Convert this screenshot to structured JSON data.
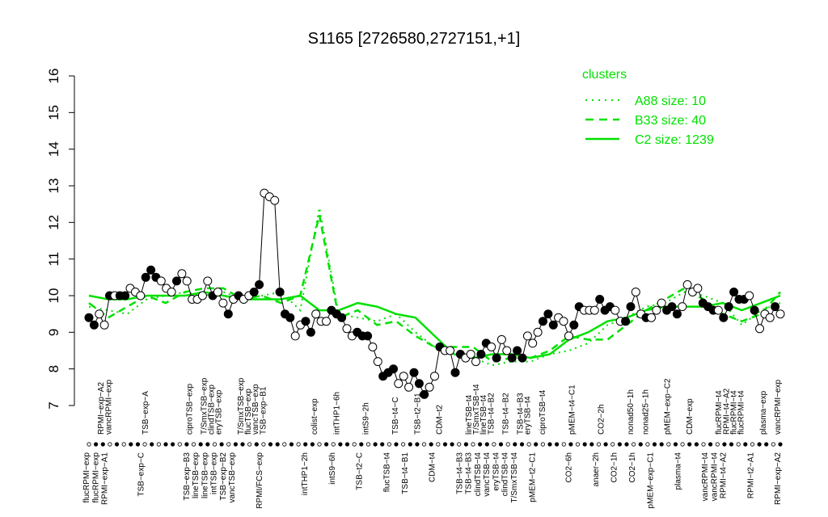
{
  "chart_data": {
    "type": "line",
    "title": "S1165 [2726580,2727151,+1]",
    "xlabel": "",
    "ylabel": "",
    "ylim": [
      7,
      16
    ],
    "yticks": [
      7,
      8,
      9,
      10,
      11,
      12,
      13,
      14,
      15,
      16
    ],
    "grid": false,
    "legend": {
      "title": "clusters",
      "placement": "top-right",
      "entries": [
        {
          "label": "A88 size: 10",
          "style": "dotted"
        },
        {
          "label": "B33 size: 40",
          "style": "dashed"
        },
        {
          "label": "C2 size: 1239",
          "style": "solid"
        }
      ]
    },
    "colors": {
      "accent": "#00e000",
      "points": "#000000"
    },
    "top_labels": [
      {
        "label": "RPMI−exp−A2",
        "i": 2
      },
      {
        "label": "vancRPMI−exp",
        "i": 3
      },
      {
        "label": "TSB−exp−A",
        "i": 8
      },
      {
        "label": "ciproTSB−exp",
        "i": 14
      },
      {
        "label": "T/SmxTSB−exp",
        "i": 16
      },
      {
        "label": "clindTSB−exp",
        "i": 17
      },
      {
        "label": "eryTSB−exp",
        "i": 18
      },
      {
        "label": "T/SmxTSB−exp",
        "i": 21
      },
      {
        "label": "flucTSB−exp",
        "i": 22
      },
      {
        "label": "vancTSB−exp",
        "i": 23
      },
      {
        "label": "TSB−exp−B1",
        "i": 24
      },
      {
        "label": "colist−exp",
        "i": 31
      },
      {
        "label": "intTHP1−6h",
        "i": 34
      },
      {
        "label": "intS9−2h",
        "i": 38
      },
      {
        "label": "TSB−t4−C",
        "i": 42
      },
      {
        "label": "TSB−t2−B1",
        "i": 45
      },
      {
        "label": "CDM−t2",
        "i": 48
      },
      {
        "label": "lineTSB−t4",
        "i": 52
      },
      {
        "label": "T/SmxTSB−t4",
        "i": 53
      },
      {
        "label": "lineTSB−t4",
        "i": 54
      },
      {
        "label": "TSB−t4−B2",
        "i": 55
      },
      {
        "label": "TSB−t4−B2",
        "i": 57
      },
      {
        "label": "TSB−t4−B3",
        "i": 59
      },
      {
        "label": "eryTSB−t4",
        "i": 60
      },
      {
        "label": "ciproTSB−t4",
        "i": 62
      },
      {
        "label": "pMEM−t4−C1",
        "i": 66
      },
      {
        "label": "CO2−2h",
        "i": 70
      },
      {
        "label": "nonad50−1h",
        "i": 74
      },
      {
        "label": "nonad25−1h",
        "i": 76
      },
      {
        "label": "pMEM−exp−C2",
        "i": 79
      },
      {
        "label": "CDM−exp",
        "i": 82
      },
      {
        "label": "flucRPMI−t4",
        "i": 86
      },
      {
        "label": "RPMI−t4−A2",
        "i": 87
      },
      {
        "label": "flucRPMI−t4",
        "i": 88
      },
      {
        "label": "flucRPMI−t4",
        "i": 89
      },
      {
        "label": "plasma−exp",
        "i": 92
      },
      {
        "label": "vancRPMI−exp",
        "i": 94
      }
    ],
    "bottom_labels": [
      {
        "label": "flucRPMI−exp",
        "i": 0
      },
      {
        "label": "flucRPMI−exp",
        "i": 1
      },
      {
        "label": "RPMI−exp−A1",
        "i": 2
      },
      {
        "label": "TSB−exp−C",
        "i": 6
      },
      {
        "label": "TSB−exp−B3",
        "i": 11
      },
      {
        "label": "lineTSB−exp",
        "i": 12
      },
      {
        "label": "lineTSB−exp",
        "i": 13
      },
      {
        "label": "intTSB−exp",
        "i": 14
      },
      {
        "label": "TSB−exp−B2",
        "i": 15
      },
      {
        "label": "vancTSB−exp",
        "i": 16
      },
      {
        "label": "RPMI/FCS−exp",
        "i": 19
      },
      {
        "label": "intTHP1−2h",
        "i": 24
      },
      {
        "label": "intS9−6h",
        "i": 27
      },
      {
        "label": "TSB−t2−C",
        "i": 30
      },
      {
        "label": "flucTSB−t4",
        "i": 33
      },
      {
        "label": "TSB−t4−B1",
        "i": 35
      },
      {
        "label": "CDM−t4",
        "i": 38
      },
      {
        "label": "TSB−t4−B3",
        "i": 41
      },
      {
        "label": "TSB−t4−B3",
        "i": 42
      },
      {
        "label": "clindTSB−t4",
        "i": 43
      },
      {
        "label": "vancTSB−t4",
        "i": 44
      },
      {
        "label": "eryTSB−t4",
        "i": 45
      },
      {
        "label": "clindTSB−t4",
        "i": 46
      },
      {
        "label": "T/SmxTSB−t4",
        "i": 47
      },
      {
        "label": "pMEM−t2−C1",
        "i": 49
      },
      {
        "label": "CO2−6h",
        "i": 53
      },
      {
        "label": "anaer−2h",
        "i": 56
      },
      {
        "label": "CO2−1h",
        "i": 58
      },
      {
        "label": "CO2−1h",
        "i": 60
      },
      {
        "label": "pMEM−exp−C1",
        "i": 62
      },
      {
        "label": "plasma−t4",
        "i": 65
      },
      {
        "label": "vancRPMI−t4",
        "i": 68
      },
      {
        "label": "vancRPMI−t4",
        "i": 69
      },
      {
        "label": "RPMI−t4−A2",
        "i": 70
      },
      {
        "label": "RPMI−t2−A1",
        "i": 73
      },
      {
        "label": "RPMI−exp−A2",
        "i": 76
      }
    ],
    "points": [
      {
        "y": 9.4,
        "f": 1
      },
      {
        "y": 9.2,
        "f": 1
      },
      {
        "y": 9.5,
        "f": 0
      },
      {
        "y": 9.2,
        "f": 0
      },
      {
        "y": 10.0,
        "f": 1
      },
      {
        "y": 10.0,
        "f": 0
      },
      {
        "y": 10.0,
        "f": 1
      },
      {
        "y": 10.0,
        "f": 1
      },
      {
        "y": 10.2,
        "f": 0
      },
      {
        "y": 10.1,
        "f": 0
      },
      {
        "y": 10.0,
        "f": 0
      },
      {
        "y": 10.5,
        "f": 1
      },
      {
        "y": 10.7,
        "f": 1
      },
      {
        "y": 10.5,
        "f": 1
      },
      {
        "y": 10.4,
        "f": 0
      },
      {
        "y": 10.2,
        "f": 0
      },
      {
        "y": 10.1,
        "f": 0
      },
      {
        "y": 10.4,
        "f": 1
      },
      {
        "y": 10.6,
        "f": 0
      },
      {
        "y": 10.4,
        "f": 0
      },
      {
        "y": 9.9,
        "f": 0
      },
      {
        "y": 9.9,
        "f": 0
      },
      {
        "y": 10.0,
        "f": 0
      },
      {
        "y": 10.4,
        "f": 0
      },
      {
        "y": 10.0,
        "f": 1
      },
      {
        "y": 10.1,
        "f": 0
      },
      {
        "y": 9.8,
        "f": 0
      },
      {
        "y": 9.5,
        "f": 1
      },
      {
        "y": 9.9,
        "f": 0
      },
      {
        "y": 10.0,
        "f": 1
      },
      {
        "y": 9.9,
        "f": 0
      },
      {
        "y": 10.0,
        "f": 0
      },
      {
        "y": 10.1,
        "f": 1
      },
      {
        "y": 10.3,
        "f": 1
      },
      {
        "y": 12.8,
        "f": 0
      },
      {
        "y": 12.7,
        "f": 0
      },
      {
        "y": 12.6,
        "f": 0
      },
      {
        "y": 10.1,
        "f": 1
      },
      {
        "y": 9.5,
        "f": 1
      },
      {
        "y": 9.4,
        "f": 1
      },
      {
        "y": 8.9,
        "f": 0
      },
      {
        "y": 9.2,
        "f": 0
      },
      {
        "y": 9.3,
        "f": 1
      },
      {
        "y": 9.0,
        "f": 1
      },
      {
        "y": 9.5,
        "f": 0
      },
      {
        "y": 9.3,
        "f": 0
      },
      {
        "y": 9.3,
        "f": 0
      },
      {
        "y": 9.6,
        "f": 1
      },
      {
        "y": 9.5,
        "f": 1
      },
      {
        "y": 9.4,
        "f": 1
      },
      {
        "y": 9.1,
        "f": 0
      },
      {
        "y": 8.9,
        "f": 0
      },
      {
        "y": 9.0,
        "f": 1
      },
      {
        "y": 8.9,
        "f": 1
      },
      {
        "y": 8.9,
        "f": 1
      },
      {
        "y": 8.6,
        "f": 0
      },
      {
        "y": 8.2,
        "f": 0
      },
      {
        "y": 7.8,
        "f": 1
      },
      {
        "y": 7.9,
        "f": 1
      },
      {
        "y": 8.0,
        "f": 1
      },
      {
        "y": 7.6,
        "f": 0
      },
      {
        "y": 7.8,
        "f": 0
      },
      {
        "y": 7.5,
        "f": 0
      },
      {
        "y": 7.9,
        "f": 1
      },
      {
        "y": 7.6,
        "f": 1
      },
      {
        "y": 7.3,
        "f": 1
      },
      {
        "y": 7.5,
        "f": 0
      },
      {
        "y": 7.8,
        "f": 0
      },
      {
        "y": 8.6,
        "f": 1
      },
      {
        "y": 8.5,
        "f": 0
      },
      {
        "y": 8.5,
        "f": 0
      },
      {
        "y": 7.9,
        "f": 1
      },
      {
        "y": 8.4,
        "f": 1
      },
      {
        "y": 8.3,
        "f": 0
      },
      {
        "y": 8.4,
        "f": 0
      },
      {
        "y": 8.2,
        "f": 0
      },
      {
        "y": 8.4,
        "f": 1
      },
      {
        "y": 8.7,
        "f": 1
      },
      {
        "y": 8.6,
        "f": 0
      },
      {
        "y": 8.3,
        "f": 1
      },
      {
        "y": 8.8,
        "f": 0
      },
      {
        "y": 8.5,
        "f": 0
      },
      {
        "y": 8.3,
        "f": 1
      },
      {
        "y": 8.5,
        "f": 1
      },
      {
        "y": 8.3,
        "f": 1
      },
      {
        "y": 8.9,
        "f": 0
      },
      {
        "y": 8.7,
        "f": 0
      },
      {
        "y": 9.0,
        "f": 0
      },
      {
        "y": 9.3,
        "f": 1
      },
      {
        "y": 9.5,
        "f": 1
      },
      {
        "y": 9.2,
        "f": 1
      },
      {
        "y": 9.4,
        "f": 0
      },
      {
        "y": 9.3,
        "f": 0
      },
      {
        "y": 8.9,
        "f": 0
      },
      {
        "y": 9.2,
        "f": 1
      },
      {
        "y": 9.7,
        "f": 1
      },
      {
        "y": 9.6,
        "f": 0
      },
      {
        "y": 9.6,
        "f": 0
      },
      {
        "y": 9.6,
        "f": 0
      },
      {
        "y": 9.9,
        "f": 1
      },
      {
        "y": 9.6,
        "f": 1
      },
      {
        "y": 9.7,
        "f": 1
      },
      {
        "y": 9.6,
        "f": 0
      },
      {
        "y": 9.3,
        "f": 0
      },
      {
        "y": 9.3,
        "f": 1
      },
      {
        "y": 9.7,
        "f": 1
      },
      {
        "y": 10.1,
        "f": 0
      },
      {
        "y": 9.5,
        "f": 0
      },
      {
        "y": 9.4,
        "f": 1
      },
      {
        "y": 9.4,
        "f": 0
      },
      {
        "y": 9.6,
        "f": 0
      },
      {
        "y": 9.8,
        "f": 0
      },
      {
        "y": 9.6,
        "f": 1
      },
      {
        "y": 9.7,
        "f": 1
      },
      {
        "y": 9.5,
        "f": 1
      },
      {
        "y": 9.7,
        "f": 0
      },
      {
        "y": 10.3,
        "f": 0
      },
      {
        "y": 10.1,
        "f": 0
      },
      {
        "y": 10.2,
        "f": 0
      },
      {
        "y": 9.8,
        "f": 1
      },
      {
        "y": 9.7,
        "f": 1
      },
      {
        "y": 9.6,
        "f": 1
      },
      {
        "y": 9.6,
        "f": 0
      },
      {
        "y": 9.4,
        "f": 1
      },
      {
        "y": 9.7,
        "f": 1
      },
      {
        "y": 10.1,
        "f": 1
      },
      {
        "y": 9.9,
        "f": 1
      },
      {
        "y": 9.9,
        "f": 1
      },
      {
        "y": 10.0,
        "f": 0
      },
      {
        "y": 9.6,
        "f": 1
      },
      {
        "y": 9.1,
        "f": 0
      },
      {
        "y": 9.5,
        "f": 0
      },
      {
        "y": 9.4,
        "f": 0
      },
      {
        "y": 9.7,
        "f": 1
      },
      {
        "y": 9.5,
        "f": 0
      }
    ],
    "series": [
      {
        "name": "A88 size: 10",
        "style": "dotted",
        "y": [
          9.7,
          9.6,
          9.5,
          9.9,
          10.0,
          10.1,
          10.0,
          10.1,
          9.9,
          10.0,
          10.1,
          9.6,
          12.4,
          9.5,
          9.4,
          9.3,
          9.5,
          9.0,
          8.6,
          8.4,
          8.3,
          8.1,
          8.2,
          8.2,
          8.4,
          8.5,
          8.7,
          9.2,
          9.4,
          9.7,
          9.8,
          10.1,
          10.0,
          9.8,
          9.2,
          9.6,
          9.8
        ]
      },
      {
        "name": "B33 size: 40",
        "style": "dashed",
        "y": [
          9.8,
          9.4,
          9.7,
          10.0,
          9.8,
          10.1,
          10.2,
          10.2,
          9.9,
          10.0,
          9.8,
          10.0,
          12.2,
          9.4,
          9.6,
          9.2,
          9.3,
          8.9,
          8.6,
          8.6,
          8.6,
          8.2,
          8.3,
          8.3,
          8.5,
          8.9,
          8.8,
          8.8,
          9.2,
          9.6,
          9.9,
          10.2,
          9.9,
          9.5,
          9.3,
          9.5,
          10.1
        ]
      },
      {
        "name": "C2 size: 1239",
        "style": "solid",
        "y": [
          10.0,
          9.9,
          9.9,
          10.0,
          10.0,
          10.0,
          10.1,
          10.0,
          9.9,
          9.9,
          9.9,
          10.0,
          9.6,
          9.6,
          9.8,
          9.7,
          9.5,
          9.4,
          8.9,
          8.4,
          8.3,
          8.4,
          8.4,
          8.3,
          8.4,
          8.8,
          9.0,
          9.3,
          9.4,
          9.6,
          9.7,
          9.7,
          9.7,
          9.8,
          9.6,
          9.8,
          10.0
        ]
      }
    ]
  }
}
